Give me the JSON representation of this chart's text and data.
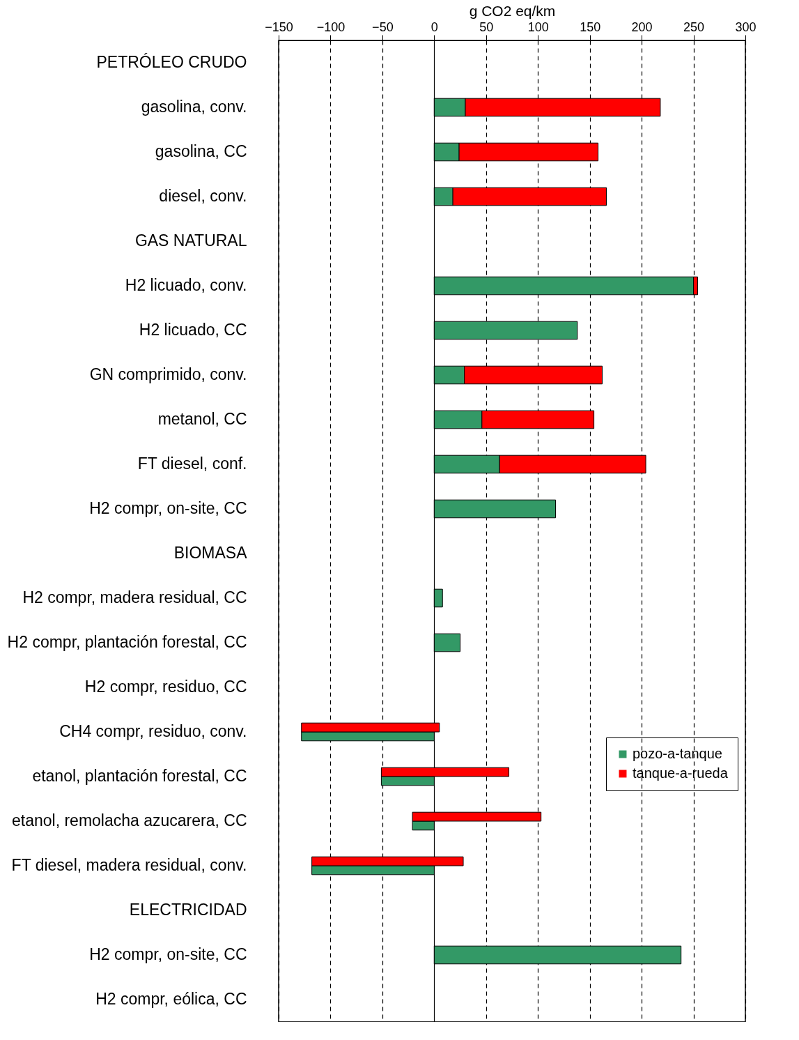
{
  "chart_data": {
    "type": "bar",
    "orientation": "horizontal",
    "xlabel": "g CO2 eq/km",
    "categories": [
      "PETRÓLEO CRUDO",
      "gasolina, conv.",
      "gasolina, CC",
      "diesel, conv.",
      "GAS NATURAL",
      "H2 licuado, conv.",
      "H2 licuado, CC",
      "GN comprimido, conv.",
      "metanol, CC",
      "FT diesel, conf.",
      "H2 compr, on-site, CC",
      "BIOMASA",
      "H2 compr, madera residual, CC",
      "H2 compr, plantación forestal, CC",
      "H2 compr, residuo, CC",
      "CH4 compr, residuo, conv.",
      "etanol, plantación forestal, CC",
      "etanol, remolacha azucarera, CC",
      "FT diesel, madera residual, conv.",
      "ELECTRICIDAD",
      "H2 compr, on-site, CC",
      "H2 compr, eólica, CC"
    ],
    "series": [
      {
        "name": "pozo-a-tanque",
        "color": "#339966",
        "values": [
          null,
          30,
          24,
          18,
          null,
          250,
          138,
          29,
          46,
          63,
          117,
          null,
          8,
          25,
          null,
          -128,
          -51,
          -21,
          -118,
          null,
          238,
          null
        ]
      },
      {
        "name": "tanque-a-rueda",
        "color": "#ff0000",
        "values": [
          null,
          188,
          134,
          148,
          null,
          4,
          null,
          133,
          108,
          141,
          null,
          null,
          null,
          null,
          null,
          133,
          123,
          124,
          146,
          null,
          null,
          null
        ],
        "base": [
          null,
          30,
          24,
          18,
          null,
          250,
          null,
          29,
          46,
          63,
          null,
          null,
          null,
          null,
          null,
          -128,
          -51,
          -21,
          -118,
          null,
          null,
          null
        ]
      }
    ],
    "xlim": [
      -150,
      300
    ],
    "xticks": [
      -150,
      -100,
      -50,
      0,
      50,
      100,
      150,
      200,
      250,
      300
    ],
    "grid": "x",
    "legend": "bottom right"
  }
}
